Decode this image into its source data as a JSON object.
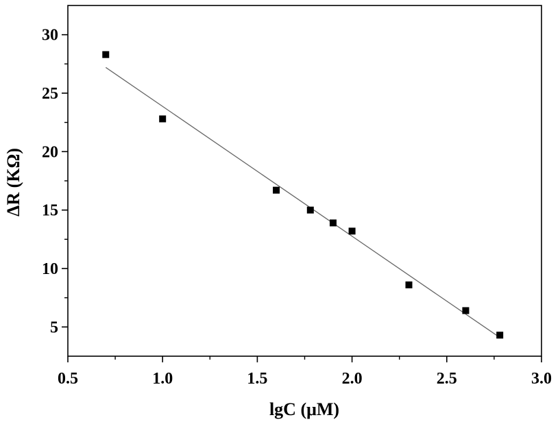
{
  "chart_data": {
    "type": "scatter",
    "title": "",
    "xlabel": "lgC (μM)",
    "ylabel": "ΔR (KΩ)",
    "xlim": [
      0.5,
      3.0
    ],
    "ylim": [
      2.5,
      32.5
    ],
    "xticks": [
      0.5,
      1.0,
      1.5,
      2.0,
      2.5,
      3.0
    ],
    "xtick_labels": [
      "0.5",
      "1.0",
      "1.5",
      "2.0",
      "2.5",
      "3.0"
    ],
    "yticks": [
      5,
      10,
      15,
      20,
      25,
      30
    ],
    "ytick_labels": [
      "5",
      "10",
      "15",
      "20",
      "25",
      "30"
    ],
    "grid": false,
    "series": [
      {
        "marker": "square",
        "color": "#000000",
        "points": [
          {
            "x": 0.7,
            "y": 28.3
          },
          {
            "x": 1.0,
            "y": 22.8
          },
          {
            "x": 1.6,
            "y": 16.7
          },
          {
            "x": 1.78,
            "y": 15.0
          },
          {
            "x": 1.9,
            "y": 13.9
          },
          {
            "x": 2.0,
            "y": 13.2
          },
          {
            "x": 2.3,
            "y": 8.6
          },
          {
            "x": 2.6,
            "y": 6.4
          },
          {
            "x": 2.78,
            "y": 4.3
          }
        ]
      }
    ],
    "fit_line": {
      "color": "#666666",
      "x": [
        0.7,
        2.78
      ],
      "y": [
        27.2,
        4.1
      ]
    }
  }
}
